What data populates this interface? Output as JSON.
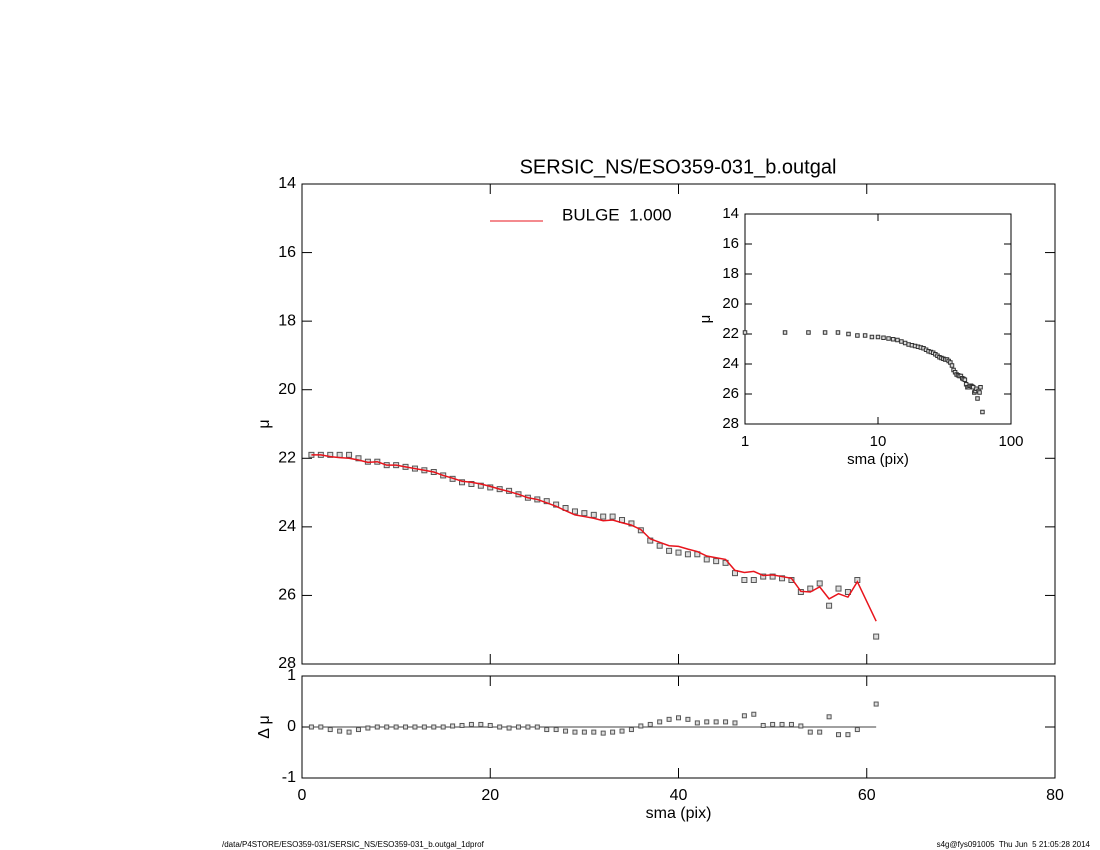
{
  "chart_data": [
    {
      "type": "line",
      "title": "SERSIC_NS/ESO359-031_b.outgal",
      "ylabel": "μ",
      "x": [
        1,
        2,
        3,
        4,
        5,
        6,
        7,
        8,
        9,
        10,
        11,
        12,
        13,
        14,
        15,
        16,
        17,
        18,
        19,
        20,
        21,
        22,
        23,
        24,
        25,
        26,
        27,
        28,
        29,
        30,
        31,
        32,
        33,
        34,
        35,
        36,
        37,
        38,
        39,
        40,
        41,
        42,
        43,
        44,
        45,
        46,
        47,
        48,
        49,
        50,
        51,
        52,
        53,
        54,
        55,
        56,
        57,
        58,
        59,
        61
      ],
      "series": [
        {
          "color": "#555555",
          "marker": "square",
          "values": [
            21.9,
            21.9,
            21.9,
            21.9,
            21.9,
            22.0,
            22.1,
            22.1,
            22.2,
            22.2,
            22.25,
            22.3,
            22.35,
            22.4,
            22.5,
            22.6,
            22.7,
            22.75,
            22.8,
            22.85,
            22.9,
            22.95,
            23.05,
            23.15,
            23.2,
            23.25,
            23.35,
            23.45,
            23.55,
            23.6,
            23.65,
            23.7,
            23.7,
            23.8,
            23.9,
            24.1,
            24.4,
            24.55,
            24.7,
            24.75,
            24.8,
            24.8,
            24.95,
            25.0,
            25.05,
            25.35,
            25.55,
            25.55,
            25.45,
            25.45,
            25.5,
            25.55,
            25.9,
            25.8,
            25.65,
            26.3,
            25.8,
            25.9,
            25.55,
            27.2
          ]
        },
        {
          "name": "BULGE  1.000",
          "color": "#e8141c",
          "values": [
            21.9,
            21.9,
            21.95,
            21.98,
            22.0,
            22.05,
            22.12,
            22.1,
            22.2,
            22.2,
            22.25,
            22.3,
            22.35,
            22.4,
            22.5,
            22.58,
            22.67,
            22.7,
            22.75,
            22.82,
            22.9,
            22.97,
            23.05,
            23.15,
            23.2,
            23.3,
            23.4,
            23.53,
            23.65,
            23.7,
            23.75,
            23.82,
            23.8,
            23.88,
            23.95,
            24.08,
            24.35,
            24.45,
            24.55,
            24.57,
            24.65,
            24.72,
            24.85,
            24.9,
            24.95,
            25.27,
            25.33,
            25.3,
            25.42,
            25.4,
            25.45,
            25.5,
            25.88,
            25.9,
            25.75,
            26.1,
            25.95,
            26.05,
            25.6,
            26.75
          ]
        }
      ],
      "xlim": [
        0,
        80
      ],
      "xticks": [
        0,
        20,
        40,
        60,
        80
      ],
      "ylim": [
        28,
        14
      ],
      "yticks": [
        14,
        16,
        18,
        20,
        22,
        24,
        26,
        28
      ]
    },
    {
      "type": "scatter",
      "ylabel": "Δ μ",
      "xlabel": "sma (pix)",
      "color": "#555555",
      "x": [
        1,
        2,
        3,
        4,
        5,
        6,
        7,
        8,
        9,
        10,
        11,
        12,
        13,
        14,
        15,
        16,
        17,
        18,
        19,
        20,
        21,
        22,
        23,
        24,
        25,
        26,
        27,
        28,
        29,
        30,
        31,
        32,
        33,
        34,
        35,
        36,
        37,
        38,
        39,
        40,
        41,
        42,
        43,
        44,
        45,
        46,
        47,
        48,
        49,
        50,
        51,
        52,
        53,
        54,
        55,
        56,
        57,
        58,
        59,
        61
      ],
      "values": [
        0,
        0,
        -0.05,
        -0.08,
        -0.1,
        -0.05,
        -0.02,
        0,
        0,
        0,
        0,
        0,
        0,
        0,
        0,
        0.02,
        0.03,
        0.05,
        0.05,
        0.03,
        0,
        -0.02,
        0,
        0,
        0,
        -0.05,
        -0.05,
        -0.08,
        -0.1,
        -0.1,
        -0.1,
        -0.12,
        -0.1,
        -0.08,
        -0.05,
        0.02,
        0.05,
        0.1,
        0.15,
        0.18,
        0.15,
        0.08,
        0.1,
        0.1,
        0.1,
        0.08,
        0.22,
        0.25,
        0.03,
        0.05,
        0.05,
        0.05,
        0.02,
        -0.1,
        -0.1,
        0.2,
        -0.15,
        -0.15,
        -0.05,
        0.45
      ],
      "xlim": [
        0,
        80
      ],
      "xticks": [
        0,
        20,
        40,
        60,
        80
      ],
      "ylim": [
        -1,
        1
      ],
      "yticks": [
        -1,
        0,
        1
      ]
    },
    {
      "type": "scatter",
      "ylabel": "μ",
      "xlabel": "sma (pix)",
      "color": "#333333",
      "xscale": "log",
      "x": [
        1,
        2,
        3,
        4,
        5,
        6,
        7,
        8,
        9,
        10,
        11,
        12,
        13,
        14,
        15,
        16,
        17,
        18,
        19,
        20,
        21,
        22,
        23,
        24,
        25,
        26,
        27,
        28,
        29,
        30,
        31,
        32,
        33,
        34,
        35,
        36,
        37,
        38,
        39,
        40,
        41,
        42,
        43,
        44,
        45,
        46,
        47,
        48,
        49,
        50,
        51,
        52,
        53,
        54,
        55,
        56,
        57,
        58,
        59,
        61
      ],
      "values": [
        21.9,
        21.9,
        21.9,
        21.9,
        21.9,
        22.0,
        22.1,
        22.1,
        22.2,
        22.2,
        22.25,
        22.3,
        22.35,
        22.4,
        22.5,
        22.6,
        22.7,
        22.75,
        22.8,
        22.85,
        22.9,
        22.95,
        23.05,
        23.15,
        23.2,
        23.25,
        23.35,
        23.45,
        23.55,
        23.6,
        23.65,
        23.7,
        23.7,
        23.8,
        23.9,
        24.1,
        24.4,
        24.55,
        24.7,
        24.75,
        24.8,
        24.8,
        24.95,
        25.0,
        25.05,
        25.35,
        25.55,
        25.55,
        25.45,
        25.45,
        25.5,
        25.55,
        25.9,
        25.8,
        25.65,
        26.3,
        25.8,
        25.9,
        25.55,
        27.2
      ],
      "xlim": [
        1,
        100
      ],
      "xticks": [
        1,
        10,
        100
      ],
      "ylim": [
        28,
        14
      ],
      "yticks": [
        14,
        16,
        18,
        20,
        22,
        24,
        26,
        28
      ]
    }
  ],
  "footer": {
    "left": "/data/P4STORE/ESO359-031/SERSIC_NS/ESO359-031_b.outgal_1dprof",
    "right": "s4g@fys091005  Thu Jun  5 21:05:28 2014"
  }
}
